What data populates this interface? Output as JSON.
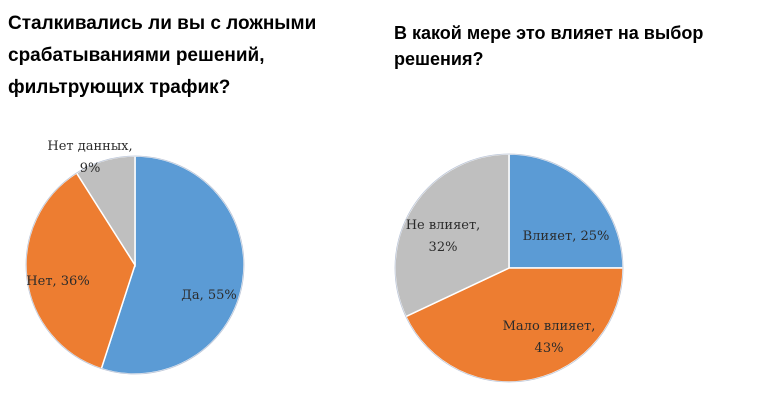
{
  "chart_data": [
    {
      "type": "pie",
      "title": "Сталкивались ли вы с ложными срабатываниями решений, фильтрующих трафик?",
      "slices": [
        {
          "label": "Да",
          "value": 55,
          "label_lines": [
            "Да, 55%"
          ],
          "color": "#5b9bd5"
        },
        {
          "label": "Нет",
          "value": 36,
          "label_lines": [
            "Нет, 36%"
          ],
          "color": "#ed7d31"
        },
        {
          "label": "Нет данных",
          "value": 9,
          "label_lines": [
            "Нет данных,",
            "9%"
          ],
          "color": "#bfbfbf"
        }
      ]
    },
    {
      "type": "pie",
      "title": "В какой мере это влияет на выбор решения?",
      "slices": [
        {
          "label": "Влияет",
          "value": 25,
          "label_lines": [
            "Влияет, 25%"
          ],
          "color": "#5b9bd5"
        },
        {
          "label": "Мало влияет",
          "value": 43,
          "label_lines": [
            "Мало влияет,",
            "43%"
          ],
          "color": "#ed7d31"
        },
        {
          "label": "Не влияет",
          "value": 32,
          "label_lines": [
            "Не влияет,",
            "32%"
          ],
          "color": "#bfbfbf"
        }
      ]
    }
  ]
}
